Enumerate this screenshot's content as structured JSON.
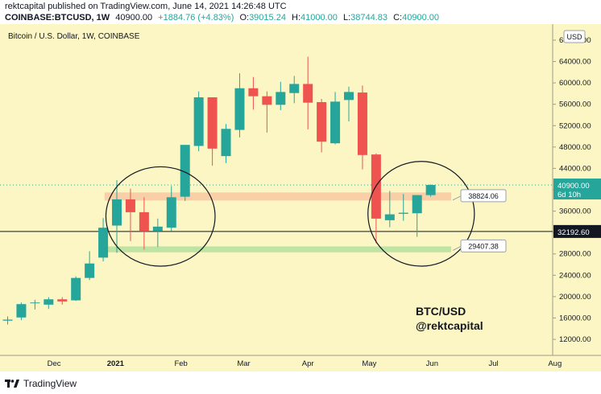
{
  "header": {
    "publisher_line": "rektcapital published on TradingView.com, June 14, 2021 14:26:48 UTC",
    "symbol_line": "COINBASE:BTCUSD, 1W",
    "price": "40900.00",
    "change": "+1884.76 (+4.83%)",
    "open_label": "O:",
    "open": "39015.24",
    "high_label": "H:",
    "high": "41000.00",
    "low_label": "L:",
    "low": "38744.83",
    "close_label": "C:",
    "close": "40900.00"
  },
  "footer": {
    "brand": "TradingView"
  },
  "colors": {
    "background": "#fbf6c3",
    "up": "#26a69a",
    "down": "#ef5350",
    "resistance_zone": "#f8cfa6",
    "support_zone": "#bfe3a3"
  },
  "chart_data": {
    "type": "candlestick",
    "title": "Bitcoin / U.S. Dollar, 1W, COINBASE",
    "currency_label": "USD",
    "ylim": [
      9000,
      71000
    ],
    "y_ticks": [
      12000,
      16000,
      20000,
      24000,
      28000,
      32000,
      36000,
      40000,
      44000,
      48000,
      52000,
      56000,
      60000,
      64000,
      68000
    ],
    "y_tick_labels": [
      "12000.00",
      "16000.00",
      "20000.00",
      "24000.00",
      "28000.00",
      "32000.00",
      "36000.00",
      "40000.00",
      "44000.00",
      "48000.00",
      "52000.00",
      "56000.00",
      "60000.00",
      "64000.00",
      "68000.00"
    ],
    "x_labels": [
      "Dec",
      "2021",
      "Feb",
      "Mar",
      "Apr",
      "May",
      "Jun",
      "Jul",
      "Aug"
    ],
    "x_label_weeks": [
      -2.6,
      1.9,
      6.7,
      11.3,
      16,
      20.5,
      25.1,
      29.6,
      34.1
    ],
    "candles": [
      {
        "week": -6,
        "o": 15500,
        "h": 16300,
        "l": 14800,
        "c": 15700
      },
      {
        "week": -5,
        "o": 16100,
        "h": 18900,
        "l": 15600,
        "c": 18600
      },
      {
        "week": -4,
        "o": 18800,
        "h": 19400,
        "l": 17600,
        "c": 18900
      },
      {
        "week": -3,
        "o": 18500,
        "h": 19900,
        "l": 17700,
        "c": 19500
      },
      {
        "week": -2,
        "o": 19500,
        "h": 19900,
        "l": 18500,
        "c": 19100
      },
      {
        "week": -1,
        "o": 19300,
        "h": 23800,
        "l": 19200,
        "c": 23500
      },
      {
        "week": 0,
        "o": 23500,
        "h": 28500,
        "l": 23100,
        "c": 26200
      },
      {
        "week": 1,
        "o": 27300,
        "h": 34700,
        "l": 26600,
        "c": 32900
      },
      {
        "week": 2,
        "o": 33300,
        "h": 41800,
        "l": 28200,
        "c": 38200
      },
      {
        "week": 3,
        "o": 38200,
        "h": 40200,
        "l": 30400,
        "c": 35800
      },
      {
        "week": 4,
        "o": 35800,
        "h": 38600,
        "l": 28800,
        "c": 32200
      },
      {
        "week": 5,
        "o": 32300,
        "h": 34600,
        "l": 29300,
        "c": 33100
      },
      {
        "week": 6,
        "o": 32900,
        "h": 40700,
        "l": 32300,
        "c": 38600
      },
      {
        "week": 7,
        "o": 38700,
        "h": 48400,
        "l": 37900,
        "c": 48400
      },
      {
        "week": 8,
        "o": 48200,
        "h": 58400,
        "l": 47200,
        "c": 57300
      },
      {
        "week": 9,
        "o": 57300,
        "h": 57300,
        "l": 44500,
        "c": 47700
      },
      {
        "week": 10,
        "o": 46300,
        "h": 52300,
        "l": 45000,
        "c": 51400
      },
      {
        "week": 11,
        "o": 51200,
        "h": 61800,
        "l": 49800,
        "c": 59000
      },
      {
        "week": 12,
        "o": 59000,
        "h": 61100,
        "l": 55000,
        "c": 57500
      },
      {
        "week": 13,
        "o": 57500,
        "h": 58400,
        "l": 50700,
        "c": 55900
      },
      {
        "week": 14,
        "o": 55900,
        "h": 60200,
        "l": 54900,
        "c": 58300
      },
      {
        "week": 15,
        "o": 58100,
        "h": 61300,
        "l": 56200,
        "c": 59800
      },
      {
        "week": 16,
        "o": 59800,
        "h": 64900,
        "l": 51300,
        "c": 56300
      },
      {
        "week": 17,
        "o": 56400,
        "h": 57000,
        "l": 47000,
        "c": 49000
      },
      {
        "week": 18,
        "o": 48700,
        "h": 58300,
        "l": 48500,
        "c": 56500
      },
      {
        "week": 19,
        "o": 56800,
        "h": 59300,
        "l": 52800,
        "c": 58300
      },
      {
        "week": 20,
        "o": 58200,
        "h": 59500,
        "l": 43800,
        "c": 46500
      },
      {
        "week": 21,
        "o": 46600,
        "h": 46800,
        "l": 30000,
        "c": 34600
      },
      {
        "week": 22,
        "o": 34300,
        "h": 39800,
        "l": 33000,
        "c": 35400
      },
      {
        "week": 23,
        "o": 35500,
        "h": 39200,
        "l": 34200,
        "c": 35700
      },
      {
        "week": 24,
        "o": 35600,
        "h": 39000,
        "l": 31200,
        "c": 39000
      },
      {
        "week": 25,
        "o": 39000,
        "h": 41000,
        "l": 38700,
        "c": 40900
      }
    ],
    "zones": [
      {
        "name": "resistance",
        "from": 38000,
        "to": 39500
      },
      {
        "name": "support",
        "from": 28300,
        "to": 29400
      }
    ],
    "horizontal_lines": [
      {
        "value": 40900,
        "style": "dotted"
      },
      {
        "value": 32192.6,
        "style": "solid",
        "label": "32192.60"
      }
    ],
    "callouts": [
      {
        "value": 38824.06,
        "label": "38824.06"
      },
      {
        "value": 29407.38,
        "label": "29407.38"
      }
    ],
    "ellipses": [
      {
        "week_from": 1.2,
        "week_to": 9.2,
        "y_from": 25700,
        "y_to": 44300
      },
      {
        "week_from": 20.4,
        "week_to": 28.2,
        "y_from": 25700,
        "y_to": 45300
      }
    ],
    "price_badge": {
      "value": "40900.00",
      "countdown": "6d 10h"
    },
    "annotation": [
      "BTC/USD",
      "@rektcapital"
    ]
  }
}
